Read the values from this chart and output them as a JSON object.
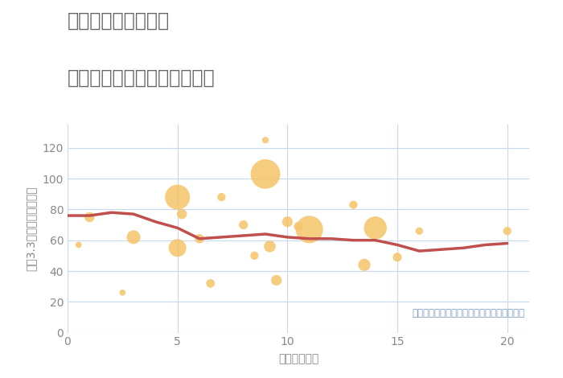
{
  "title_line1": "三重県伊賀市下郡の",
  "title_line2": "駅距離別中古マンション価格",
  "xlabel": "駅距離（分）",
  "ylabel": "坪（3.3㎡）単価（万円）",
  "annotation": "円の大きさは、取引のあった物件面積を示す",
  "xlim": [
    0,
    21
  ],
  "ylim": [
    0,
    135
  ],
  "xticks": [
    0,
    5,
    10,
    15,
    20
  ],
  "yticks": [
    0,
    20,
    40,
    60,
    80,
    100,
    120
  ],
  "scatter_x": [
    0.5,
    1.0,
    2.5,
    3.0,
    5.0,
    5.0,
    5.2,
    6.0,
    6.5,
    7.0,
    8.0,
    8.5,
    9.0,
    9.0,
    9.2,
    9.5,
    10.0,
    10.5,
    11.0,
    13.0,
    13.5,
    14.0,
    15.0,
    16.0,
    20.0
  ],
  "scatter_y": [
    57,
    75,
    26,
    62,
    88,
    55,
    77,
    61,
    32,
    88,
    70,
    50,
    125,
    103,
    56,
    34,
    72,
    69,
    67,
    83,
    44,
    68,
    49,
    66,
    66
  ],
  "scatter_size": [
    30,
    80,
    30,
    150,
    500,
    250,
    80,
    70,
    60,
    55,
    65,
    55,
    35,
    700,
    110,
    90,
    90,
    65,
    600,
    55,
    120,
    420,
    65,
    45,
    55
  ],
  "trend_x": [
    0,
    1,
    2,
    3,
    4,
    5,
    6,
    7,
    8,
    9,
    10,
    11,
    12,
    13,
    14,
    15,
    16,
    17,
    18,
    19,
    20
  ],
  "trend_y": [
    76,
    76,
    78,
    77,
    72,
    68,
    61,
    62,
    63,
    64,
    62,
    61,
    61,
    60,
    60,
    57,
    53,
    54,
    55,
    57,
    58
  ],
  "scatter_color": "#F5C469",
  "scatter_alpha": 0.85,
  "trend_color": "#C0504D",
  "trend_linewidth": 2.5,
  "bg_color": "#FFFFFF",
  "grid_color": "#C8D8E8",
  "title_color": "#666666",
  "axis_color": "#888888",
  "annotation_color": "#7799BB",
  "title_fontsize": 17,
  "label_fontsize": 10,
  "tick_fontsize": 10,
  "annotation_fontsize": 8.5
}
